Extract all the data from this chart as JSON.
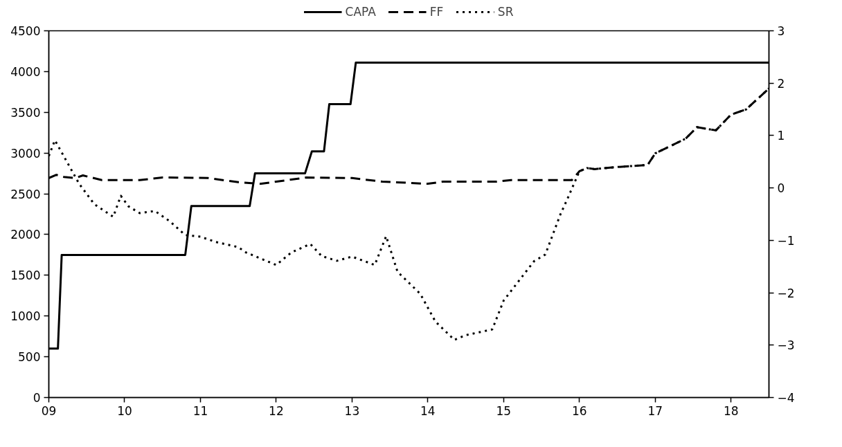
{
  "chart_data": {
    "type": "line",
    "legend": "top",
    "grid": false,
    "xlim": [
      9,
      18.5
    ],
    "xticks": [
      {
        "value": 9,
        "label": "09"
      },
      10,
      11,
      12,
      13,
      14,
      15,
      16,
      17,
      18
    ],
    "ylim": [
      0,
      4500
    ],
    "yticks": [
      0,
      500,
      1000,
      1500,
      2000,
      2500,
      3000,
      3500,
      4000,
      4500
    ],
    "y2lim": [
      -4,
      3
    ],
    "y2ticks": [
      -4,
      -3,
      -2,
      -1,
      0,
      1,
      2,
      3
    ],
    "series": [
      {
        "name": "CAPA",
        "color": "#000000",
        "line_style": "solid",
        "x": [
          9.0,
          9.12,
          9.17,
          10.8,
          10.88,
          11.65,
          11.72,
          12.38,
          12.47,
          12.63,
          12.7,
          12.98,
          13.05,
          18.5
        ],
        "values": [
          600,
          600,
          1750,
          1750,
          2350,
          2350,
          2750,
          2750,
          3020,
          3020,
          3600,
          3600,
          4110,
          4110
        ]
      },
      {
        "name": "FF",
        "color": "#000000",
        "line_style": "dashed",
        "axis": "y2",
        "x": [
          9.0,
          9.1,
          9.2,
          9.35,
          9.45,
          9.7,
          10.2,
          10.5,
          11.1,
          11.5,
          11.8,
          12.0,
          12.4,
          13.0,
          13.4,
          14.0,
          14.2,
          14.9,
          15.1,
          15.9,
          16.0,
          16.1,
          16.2,
          16.5,
          16.9,
          17.0,
          17.4,
          17.55,
          17.8,
          18.0,
          18.2,
          18.5
        ],
        "values": [
          0.19,
          0.25,
          0.21,
          0.19,
          0.24,
          0.15,
          0.15,
          0.2,
          0.19,
          0.11,
          0.08,
          0.12,
          0.2,
          0.19,
          0.12,
          0.08,
          0.12,
          0.12,
          0.15,
          0.15,
          0.32,
          0.38,
          0.36,
          0.4,
          0.44,
          0.66,
          0.94,
          1.16,
          1.1,
          1.4,
          1.5,
          1.9
        ]
      },
      {
        "name": "SR",
        "color": "#000000",
        "line_style": "dotted",
        "axis": "y2",
        "x": [
          9.0,
          9.08,
          9.2,
          9.4,
          9.6,
          9.85,
          9.95,
          10.05,
          10.2,
          10.4,
          10.6,
          10.8,
          11.0,
          11.2,
          11.5,
          11.6,
          12.0,
          12.2,
          12.45,
          12.6,
          12.8,
          13.0,
          13.3,
          13.45,
          13.6,
          13.9,
          14.1,
          14.35,
          14.5,
          14.85,
          15.0,
          15.4,
          15.55,
          15.75,
          15.85,
          16.0,
          16.1,
          16.2,
          16.5,
          16.9,
          17.0,
          17.4,
          17.55,
          17.8,
          18.0,
          18.2,
          18.5
        ],
        "values": [
          0.61,
          0.91,
          0.6,
          0.08,
          -0.31,
          -0.55,
          -0.15,
          -0.35,
          -0.48,
          -0.44,
          -0.64,
          -0.9,
          -0.93,
          -1.03,
          -1.13,
          -1.23,
          -1.47,
          -1.23,
          -1.07,
          -1.3,
          -1.39,
          -1.31,
          -1.47,
          -0.92,
          -1.6,
          -2.02,
          -2.55,
          -2.9,
          -2.81,
          -2.7,
          -2.15,
          -1.4,
          -1.27,
          -0.5,
          -0.18,
          0.32,
          0.38,
          0.36,
          0.4,
          0.44,
          0.66,
          0.94,
          1.16,
          1.1,
          1.4,
          1.5,
          1.9
        ]
      }
    ]
  }
}
